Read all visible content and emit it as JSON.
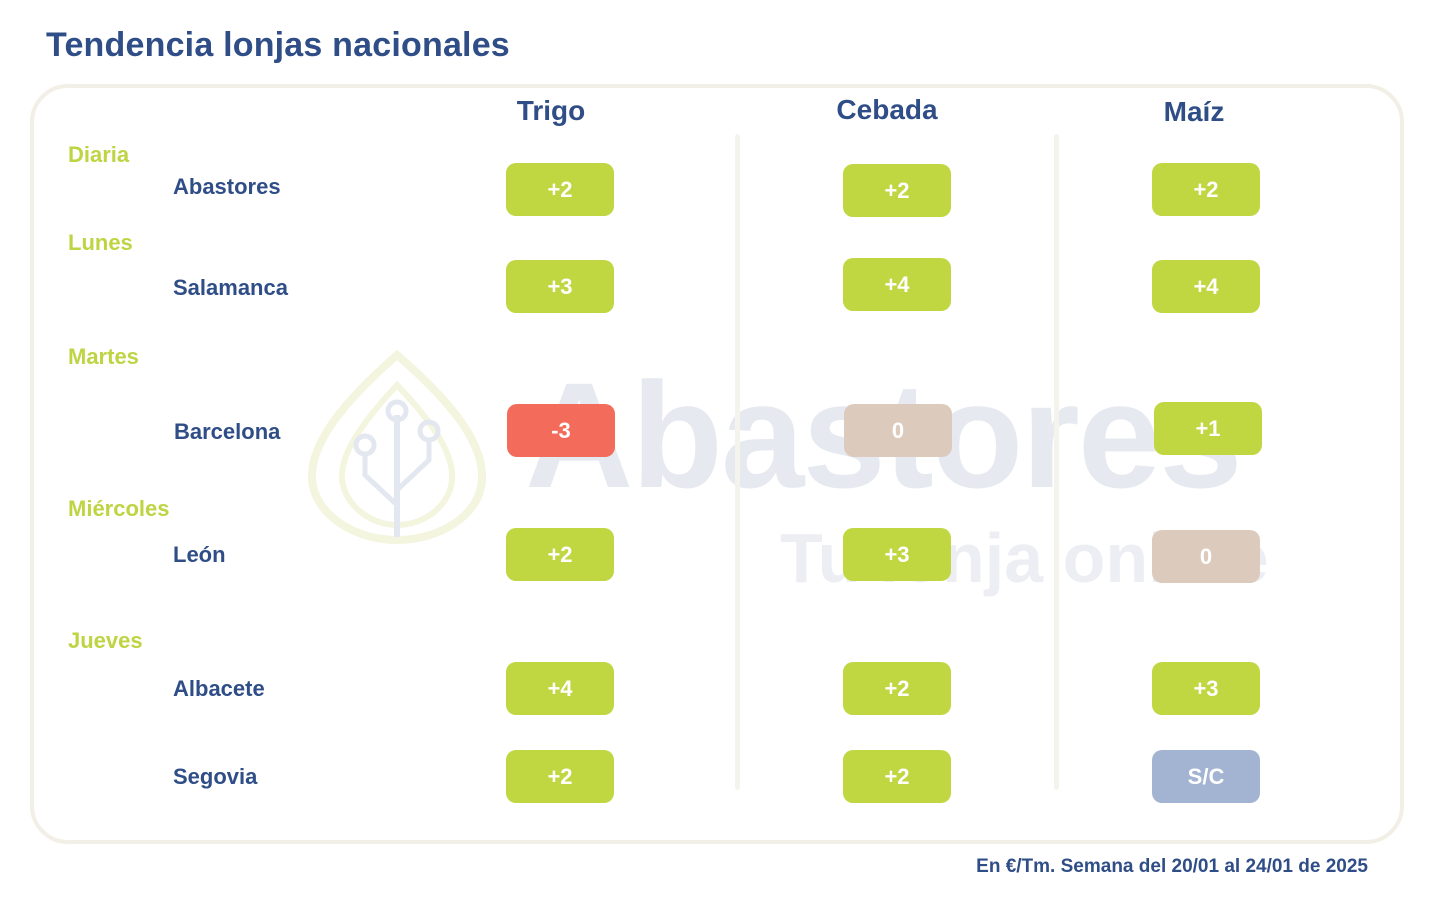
{
  "title": "Tendencia lonjas nacionales",
  "columns": [
    "Trigo",
    "Cebada",
    "Maíz"
  ],
  "days": {
    "diaria": "Diaria",
    "lunes": "Lunes",
    "martes": "Martes",
    "miercoles": "Miércoles",
    "jueves": "Jueves"
  },
  "rows": [
    {
      "market": "Abastores",
      "day": "Diaria",
      "trigo": "+2",
      "cebada": "+2",
      "maiz": "+2"
    },
    {
      "market": "Salamanca",
      "day": "Lunes",
      "trigo": "+3",
      "cebada": "+4",
      "maiz": "+4"
    },
    {
      "market": "Barcelona",
      "day": "Martes",
      "trigo": "-3",
      "cebada": "0",
      "maiz": "+1"
    },
    {
      "market": "León",
      "day": "Miércoles",
      "trigo": "+2",
      "cebada": "+3",
      "maiz": "0"
    },
    {
      "market": "Albacete",
      "day": "Jueves",
      "trigo": "+4",
      "cebada": "+2",
      "maiz": "+3"
    },
    {
      "market": "Segovia",
      "day": "Jueves",
      "trigo": "+2",
      "cebada": "+2",
      "maiz": "S/C"
    }
  ],
  "watermark": {
    "brand": "Abastores",
    "tagline": "Tu lonja online"
  },
  "footer": "En €/Tm. Semana del 20/01 al 24/01 de 2025",
  "colors": {
    "title": "#2f4d86",
    "day_label": "#bfd443",
    "positive": "#c0d741",
    "negative": "#f26b5b",
    "neutral": "#dccbbd",
    "no_quote": "#a2b4d1"
  }
}
